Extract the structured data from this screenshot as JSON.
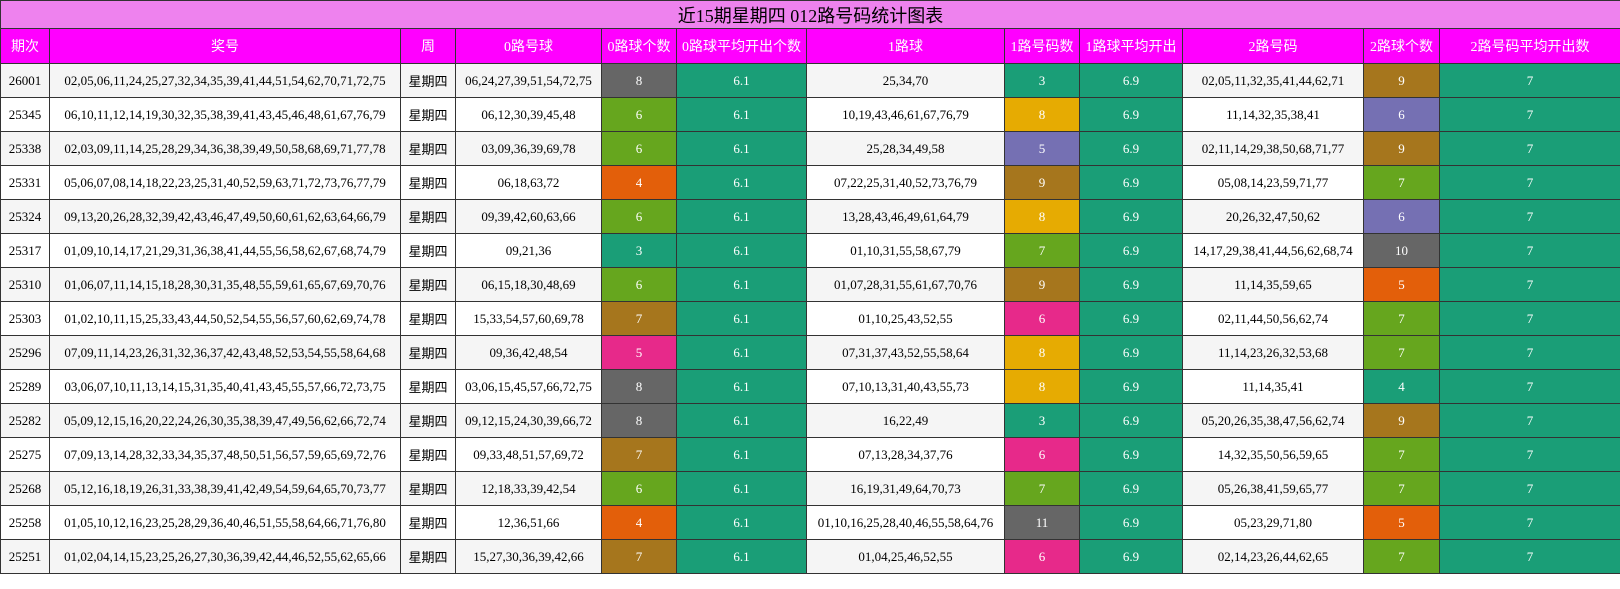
{
  "title": "近15期星期四 012路号码统计图表",
  "colors": {
    "avg": "#1a9e77",
    "c3": "#1a9e77",
    "c4": "#e35f0a",
    "c5": "#e7298a",
    "c6": "#66a61e",
    "c7": "#a6761d",
    "c8": "#666666",
    "c9": "#a6761d",
    "c10": "#666666",
    "c11": "#666666",
    "r1_c5": "#7570b3",
    "r1_c6": "#e7298a",
    "r1_c7": "#66a61e",
    "r1_c8": "#e6ab02",
    "r1_c9": "#a6761d",
    "r2_c4": "#1a9e77",
    "r2_c5": "#e35f0a",
    "r2_c6": "#7570b3",
    "r2_c7": "#66a61e",
    "r2_c9": "#a6761d",
    "r2_c10": "#666666"
  },
  "headers": [
    "期次",
    "奖号",
    "周",
    "0路号球",
    "0路球个数",
    "0路球平均开出个数",
    "1路球",
    "1路号码数",
    "1路球平均开出",
    "2路号码",
    "2路球个数",
    "2路号码平均开出数"
  ],
  "rows": [
    [
      "26001",
      "02,05,06,11,24,25,27,32,34,35,39,41,44,51,54,62,70,71,72,75",
      "星期四",
      "06,24,27,39,51,54,72,75",
      "8",
      "6.1",
      "25,34,70",
      "3",
      "6.9",
      "02,05,11,32,35,41,44,62,71",
      "9",
      "7"
    ],
    [
      "25345",
      "06,10,11,12,14,19,30,32,35,38,39,41,43,45,46,48,61,67,76,79",
      "星期四",
      "06,12,30,39,45,48",
      "6",
      "6.1",
      "10,19,43,46,61,67,76,79",
      "8",
      "6.9",
      "11,14,32,35,38,41",
      "6",
      "7"
    ],
    [
      "25338",
      "02,03,09,11,14,25,28,29,34,36,38,39,49,50,58,68,69,71,77,78",
      "星期四",
      "03,09,36,39,69,78",
      "6",
      "6.1",
      "25,28,34,49,58",
      "5",
      "6.9",
      "02,11,14,29,38,50,68,71,77",
      "9",
      "7"
    ],
    [
      "25331",
      "05,06,07,08,14,18,22,23,25,31,40,52,59,63,71,72,73,76,77,79",
      "星期四",
      "06,18,63,72",
      "4",
      "6.1",
      "07,22,25,31,40,52,73,76,79",
      "9",
      "6.9",
      "05,08,14,23,59,71,77",
      "7",
      "7"
    ],
    [
      "25324",
      "09,13,20,26,28,32,39,42,43,46,47,49,50,60,61,62,63,64,66,79",
      "星期四",
      "09,39,42,60,63,66",
      "6",
      "6.1",
      "13,28,43,46,49,61,64,79",
      "8",
      "6.9",
      "20,26,32,47,50,62",
      "6",
      "7"
    ],
    [
      "25317",
      "01,09,10,14,17,21,29,31,36,38,41,44,55,56,58,62,67,68,74,79",
      "星期四",
      "09,21,36",
      "3",
      "6.1",
      "01,10,31,55,58,67,79",
      "7",
      "6.9",
      "14,17,29,38,41,44,56,62,68,74",
      "10",
      "7"
    ],
    [
      "25310",
      "01,06,07,11,14,15,18,28,30,31,35,48,55,59,61,65,67,69,70,76",
      "星期四",
      "06,15,18,30,48,69",
      "6",
      "6.1",
      "01,07,28,31,55,61,67,70,76",
      "9",
      "6.9",
      "11,14,35,59,65",
      "5",
      "7"
    ],
    [
      "25303",
      "01,02,10,11,15,25,33,43,44,50,52,54,55,56,57,60,62,69,74,78",
      "星期四",
      "15,33,54,57,60,69,78",
      "7",
      "6.1",
      "01,10,25,43,52,55",
      "6",
      "6.9",
      "02,11,44,50,56,62,74",
      "7",
      "7"
    ],
    [
      "25296",
      "07,09,11,14,23,26,31,32,36,37,42,43,48,52,53,54,55,58,64,68",
      "星期四",
      "09,36,42,48,54",
      "5",
      "6.1",
      "07,31,37,43,52,55,58,64",
      "8",
      "6.9",
      "11,14,23,26,32,53,68",
      "7",
      "7"
    ],
    [
      "25289",
      "03,06,07,10,11,13,14,15,31,35,40,41,43,45,55,57,66,72,73,75",
      "星期四",
      "03,06,15,45,57,66,72,75",
      "8",
      "6.1",
      "07,10,13,31,40,43,55,73",
      "8",
      "6.9",
      "11,14,35,41",
      "4",
      "7"
    ],
    [
      "25282",
      "05,09,12,15,16,20,22,24,26,30,35,38,39,47,49,56,62,66,72,74",
      "星期四",
      "09,12,15,24,30,39,66,72",
      "8",
      "6.1",
      "16,22,49",
      "3",
      "6.9",
      "05,20,26,35,38,47,56,62,74",
      "9",
      "7"
    ],
    [
      "25275",
      "07,09,13,14,28,32,33,34,35,37,48,50,51,56,57,59,65,69,72,76",
      "星期四",
      "09,33,48,51,57,69,72",
      "7",
      "6.1",
      "07,13,28,34,37,76",
      "6",
      "6.9",
      "14,32,35,50,56,59,65",
      "7",
      "7"
    ],
    [
      "25268",
      "05,12,16,18,19,26,31,33,38,39,41,42,49,54,59,64,65,70,73,77",
      "星期四",
      "12,18,33,39,42,54",
      "6",
      "6.1",
      "16,19,31,49,64,70,73",
      "7",
      "6.9",
      "05,26,38,41,59,65,77",
      "7",
      "7"
    ],
    [
      "25258",
      "01,05,10,12,16,23,25,28,29,36,40,46,51,55,58,64,66,71,76,80",
      "星期四",
      "12,36,51,66",
      "4",
      "6.1",
      "01,10,16,25,28,40,46,55,58,64,76",
      "11",
      "6.9",
      "05,23,29,71,80",
      "5",
      "7"
    ],
    [
      "25251",
      "01,02,04,14,15,23,25,26,27,30,36,39,42,44,46,52,55,62,65,66",
      "星期四",
      "15,27,30,36,39,42,66",
      "7",
      "6.1",
      "01,04,25,46,52,55",
      "6",
      "6.9",
      "02,14,23,26,44,62,65",
      "7",
      "7"
    ]
  ]
}
